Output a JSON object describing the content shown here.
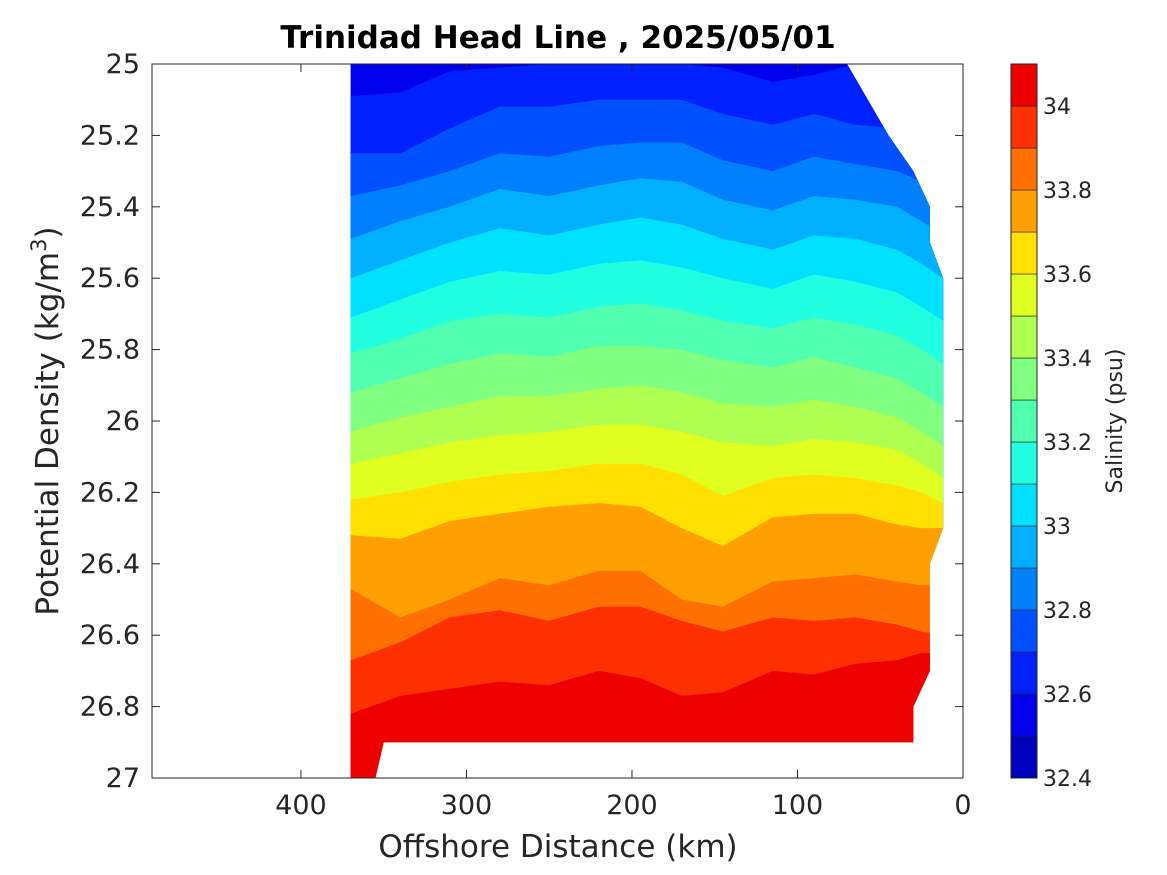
{
  "chart_data": {
    "type": "heatmap",
    "subtype": "filled-contour",
    "title": "Trinidad Head Line , 2025/05/01",
    "xlabel": "Offshore Distance (km)",
    "ylabel": "Potential Density (kg/m3)",
    "ylabel_parts": {
      "main": "Potential Density (kg/m",
      "superscript": "3",
      "close": ")"
    },
    "x_reversed": true,
    "y_reversed": true,
    "xlim": [
      0,
      490
    ],
    "ylim": [
      25,
      27
    ],
    "xticks": [
      0,
      100,
      200,
      300,
      400
    ],
    "xtick_labels": [
      "0",
      "100",
      "200",
      "300",
      "400"
    ],
    "yticks": [
      25,
      25.2,
      25.4,
      25.6,
      25.8,
      26,
      26.2,
      26.4,
      26.6,
      26.8,
      27
    ],
    "ytick_labels": [
      "25",
      "25.2",
      "25.4",
      "25.6",
      "25.8",
      "26",
      "26.2",
      "26.4",
      "26.6",
      "26.8",
      "27"
    ],
    "colorbar": {
      "label": "Salinity (psu)",
      "range": [
        32.4,
        34.1
      ],
      "ticks": [
        32.4,
        32.6,
        32.8,
        33,
        33.2,
        33.4,
        33.6,
        33.8,
        34
      ],
      "tick_labels": [
        "32.4",
        "32.6",
        "32.8",
        "33",
        "33.2",
        "33.4",
        "33.6",
        "33.8",
        "34"
      ],
      "levels": [
        32.4,
        32.5,
        32.6,
        32.7,
        32.8,
        32.9,
        33.0,
        33.1,
        33.2,
        33.3,
        33.4,
        33.5,
        33.6,
        33.7,
        33.8,
        33.9,
        34.0,
        34.1
      ],
      "colors": [
        "#00008f",
        "#0000bf",
        "#0000ef",
        "#0020ff",
        "#0050ff",
        "#0080ff",
        "#00b0ff",
        "#00e0ff",
        "#20ffdf",
        "#50ffaf",
        "#80ff80",
        "#afff50",
        "#dfff20",
        "#ffe000",
        "#ffa000",
        "#ff7000",
        "#ff3000",
        "#ef0000",
        "#af0000"
      ],
      "colormap": "jet"
    },
    "section_extent": {
      "offshore_edge_km": 370,
      "offshore_edge_deep_km": 355,
      "inshore_edge_km": 12,
      "bottom_density_main": 26.9,
      "bottom_density_offshore": 27.0
    },
    "x_stations": [
      370,
      340,
      310,
      280,
      250,
      220,
      195,
      170,
      145,
      115,
      90,
      65,
      40,
      25,
      12
    ],
    "contours": [
      {
        "level": 32.6,
        "density": [
          25.09,
          25.08,
          25.02,
          25.01,
          25.0,
          25.0,
          25.0,
          25.0,
          25.01,
          25.05,
          25.03,
          25.0,
          25.0,
          25.0,
          25.0
        ]
      },
      {
        "level": 32.7,
        "density": [
          25.25,
          25.25,
          25.18,
          25.12,
          25.12,
          25.1,
          25.1,
          25.1,
          25.14,
          25.17,
          25.14,
          25.17,
          25.18,
          25.2,
          25.2
        ]
      },
      {
        "level": 32.8,
        "density": [
          25.37,
          25.34,
          25.3,
          25.25,
          25.26,
          25.23,
          25.22,
          25.22,
          25.27,
          25.3,
          25.26,
          25.28,
          25.3,
          25.33,
          25.35
        ]
      },
      {
        "level": 32.9,
        "density": [
          25.49,
          25.44,
          25.4,
          25.35,
          25.37,
          25.34,
          25.32,
          25.33,
          25.38,
          25.41,
          25.37,
          25.38,
          25.4,
          25.44,
          25.48
        ]
      },
      {
        "level": 33.0,
        "density": [
          25.6,
          25.55,
          25.5,
          25.46,
          25.48,
          25.45,
          25.43,
          25.45,
          25.49,
          25.52,
          25.48,
          25.49,
          25.52,
          25.56,
          25.6
        ]
      },
      {
        "level": 33.1,
        "density": [
          25.71,
          25.66,
          25.61,
          25.58,
          25.59,
          25.56,
          25.55,
          25.57,
          25.6,
          25.63,
          25.59,
          25.61,
          25.64,
          25.68,
          25.72
        ]
      },
      {
        "level": 33.2,
        "density": [
          25.81,
          25.77,
          25.72,
          25.7,
          25.71,
          25.68,
          25.67,
          25.69,
          25.72,
          25.74,
          25.71,
          25.73,
          25.76,
          25.8,
          25.84
        ]
      },
      {
        "level": 33.3,
        "density": [
          25.92,
          25.88,
          25.84,
          25.81,
          25.82,
          25.79,
          25.79,
          25.8,
          25.83,
          25.85,
          25.82,
          25.85,
          25.88,
          25.92,
          25.96
        ]
      },
      {
        "level": 33.4,
        "density": [
          26.03,
          25.99,
          25.96,
          25.93,
          25.93,
          25.91,
          25.9,
          25.92,
          25.95,
          25.96,
          25.94,
          25.96,
          25.99,
          26.03,
          26.07
        ]
      },
      {
        "level": 33.5,
        "density": [
          26.12,
          26.09,
          26.06,
          26.04,
          26.03,
          26.01,
          26.01,
          26.03,
          26.06,
          26.07,
          26.05,
          26.06,
          26.08,
          26.12,
          26.16
        ]
      },
      {
        "level": 33.6,
        "density": [
          26.22,
          26.2,
          26.17,
          26.15,
          26.14,
          26.12,
          26.12,
          26.15,
          26.21,
          26.16,
          26.15,
          26.16,
          26.18,
          26.2,
          26.23
        ]
      },
      {
        "level": 33.7,
        "density": [
          26.32,
          26.33,
          26.28,
          26.26,
          26.24,
          26.23,
          26.24,
          26.3,
          26.35,
          26.27,
          26.26,
          26.26,
          26.29,
          26.3,
          26.3
        ]
      },
      {
        "level": 33.8,
        "density": [
          26.47,
          26.55,
          26.5,
          26.44,
          26.46,
          26.42,
          26.42,
          26.5,
          26.52,
          26.45,
          26.44,
          26.43,
          26.45,
          26.46,
          26.46
        ]
      },
      {
        "level": 33.9,
        "density": [
          26.67,
          26.62,
          26.55,
          26.53,
          26.56,
          26.52,
          26.52,
          26.56,
          26.59,
          26.55,
          26.56,
          26.55,
          26.57,
          26.59,
          26.6
        ]
      },
      {
        "level": 34.0,
        "density": [
          26.82,
          26.77,
          26.75,
          26.73,
          26.74,
          26.7,
          26.72,
          26.77,
          26.76,
          26.7,
          26.71,
          26.68,
          26.67,
          26.65,
          26.65
        ]
      }
    ]
  }
}
